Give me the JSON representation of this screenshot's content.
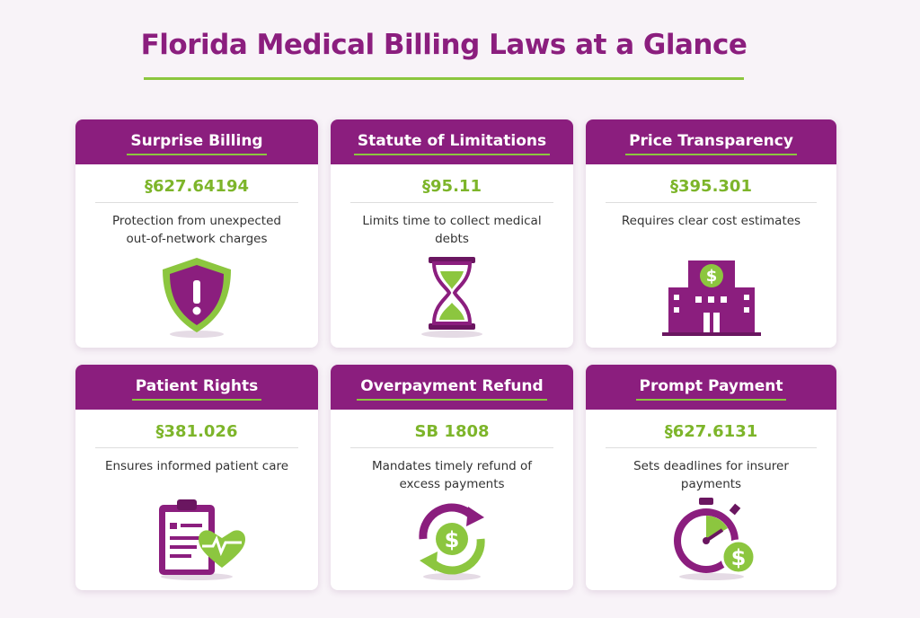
{
  "title": "Florida Medical Billing Laws at a Glance",
  "cards": [
    {
      "heading": "Surprise Billing",
      "code": "§627.64194",
      "description": "Protection from unexpected out-of-network charges"
    },
    {
      "heading": "Statute of Limitations",
      "code": "§95.11",
      "description": "Limits time to collect medical debts"
    },
    {
      "heading": "Price Transparency",
      "code": "§395.301",
      "description": "Requires clear cost estimates"
    },
    {
      "heading": "Patient Rights",
      "code": "§381.026",
      "description": "Ensures informed patient care"
    },
    {
      "heading": "Overpayment Refund",
      "code": "SB 1808",
      "description": "Mandates timely refund of excess payments"
    },
    {
      "heading": "Prompt Payment",
      "code": "§627.6131",
      "description": "Sets deadlines for insurer payments"
    }
  ]
}
